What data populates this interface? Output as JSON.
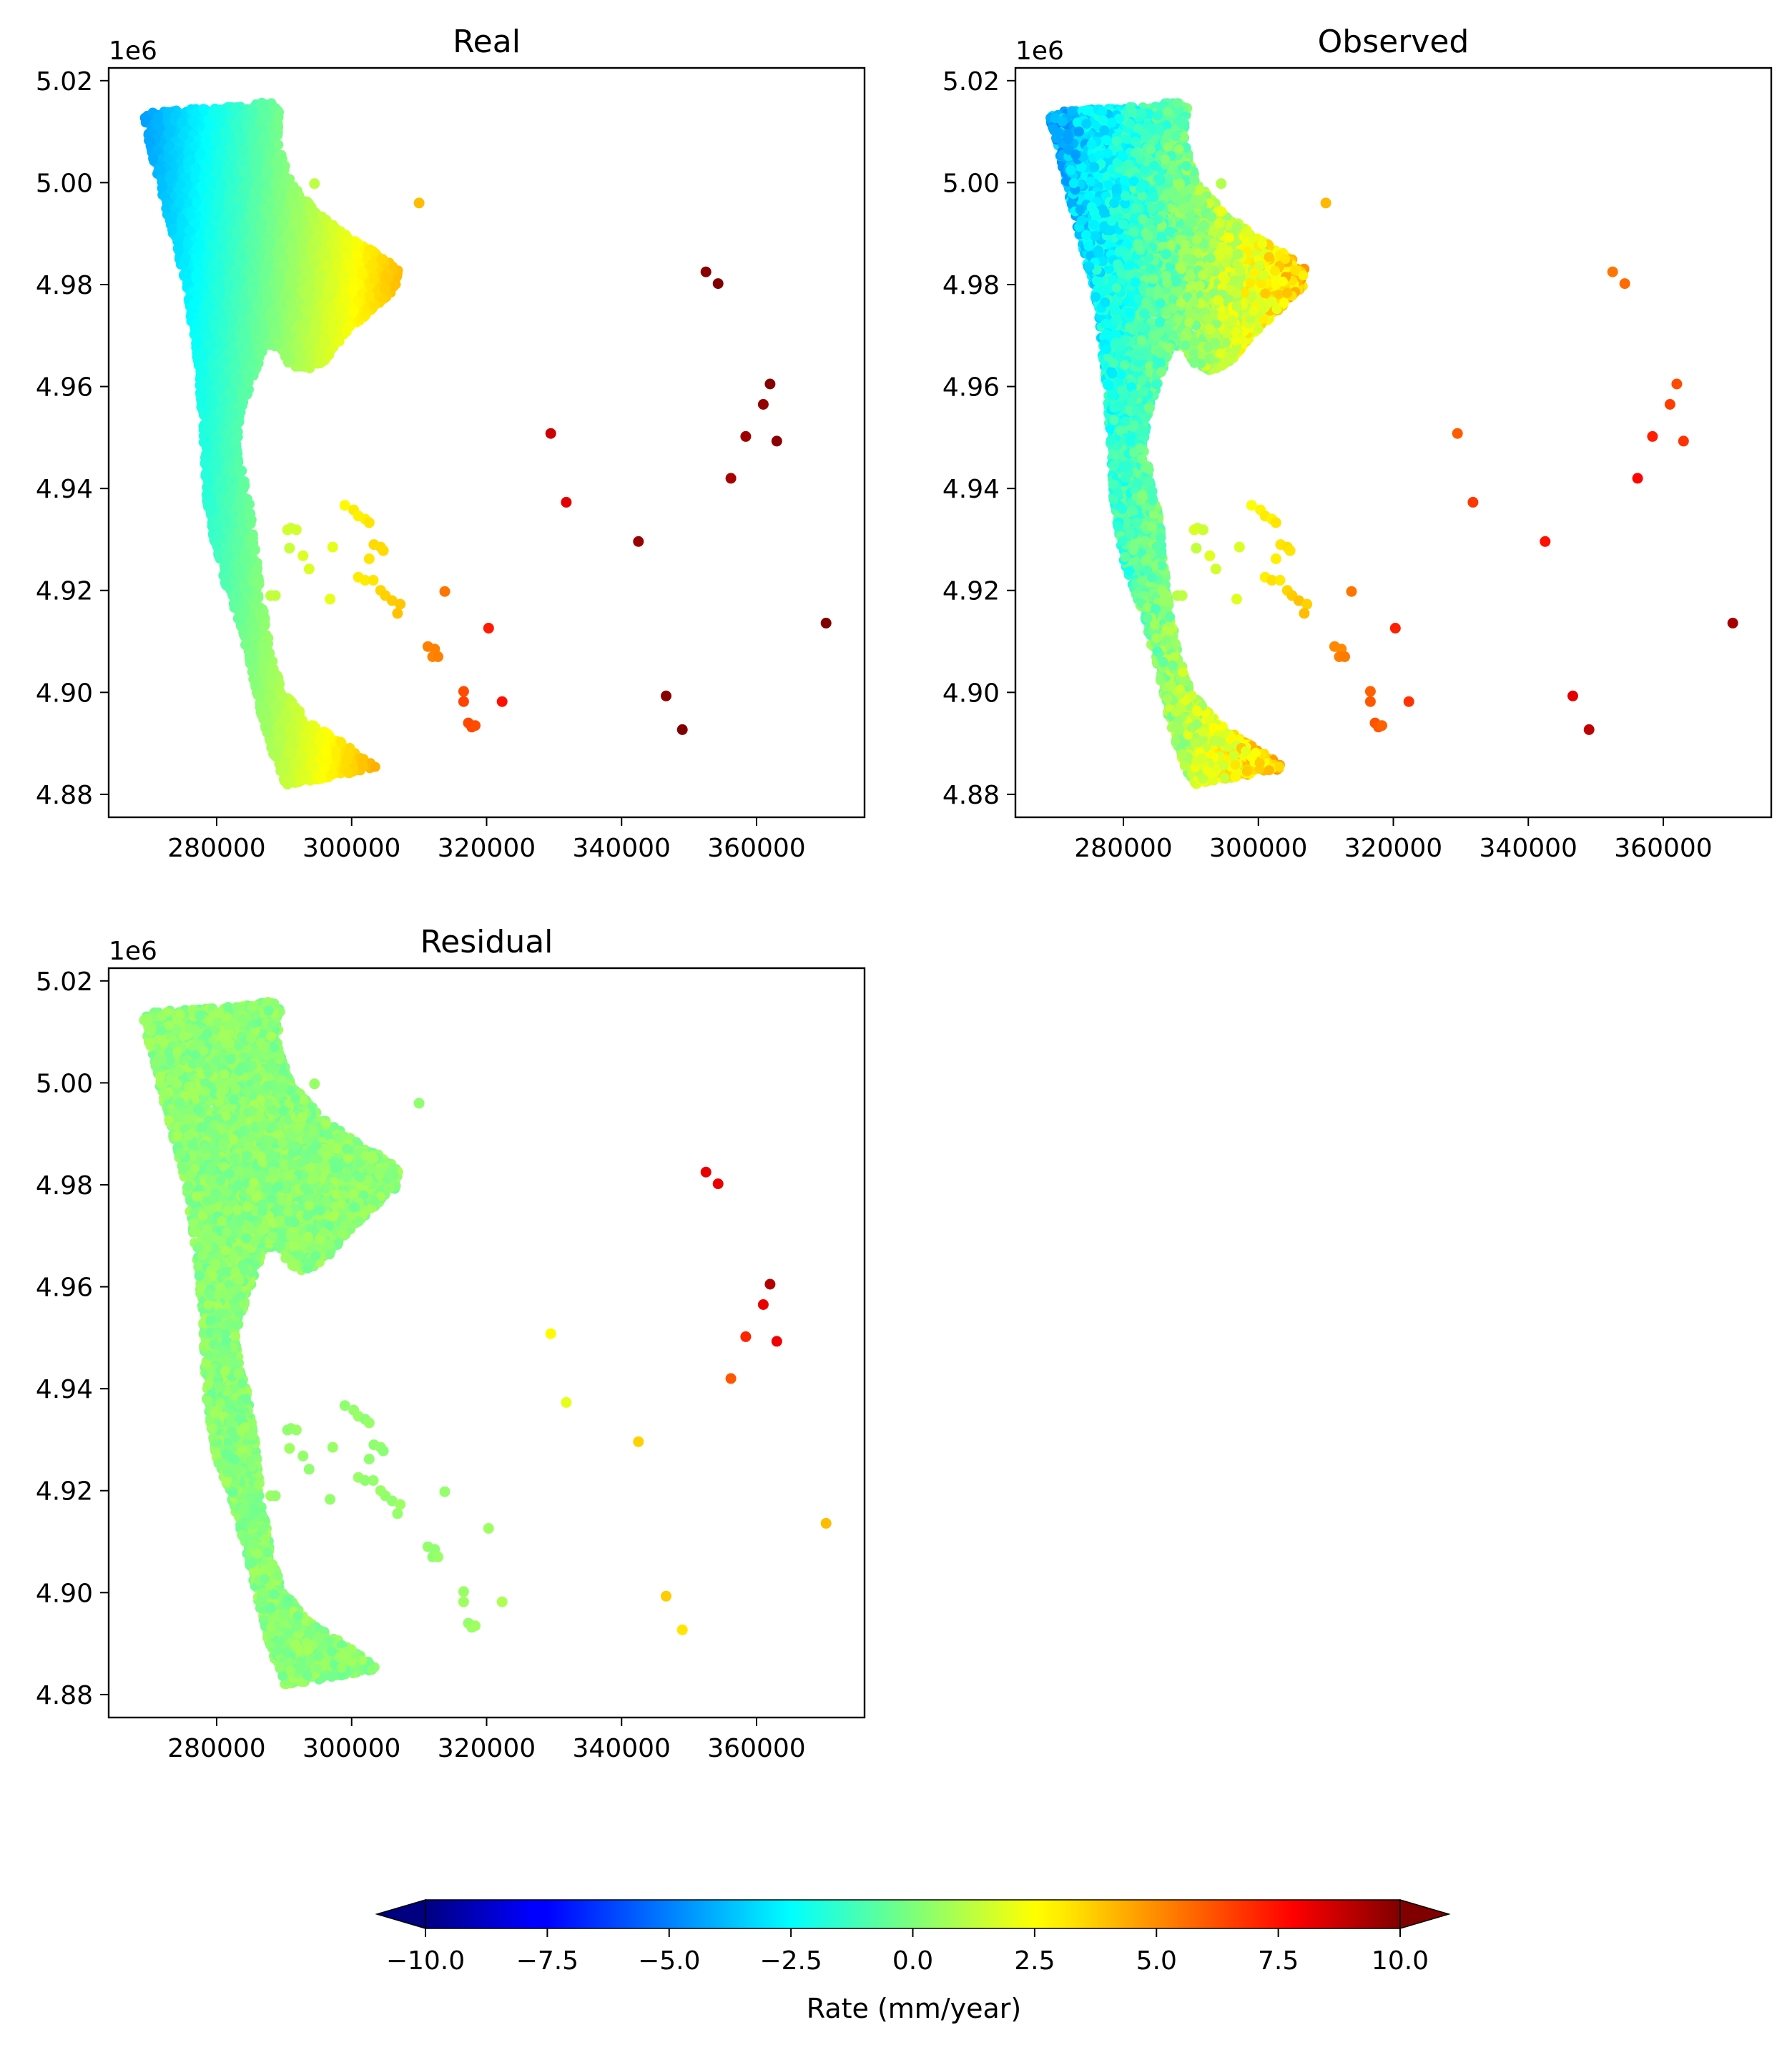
{
  "colorbar": {
    "label": "Rate (mm/year)",
    "min": -10,
    "max": 10,
    "extend": "both",
    "colormap": "jet",
    "ticks": [
      -10,
      -7.5,
      -5,
      -2.5,
      0,
      2.5,
      5,
      7.5,
      10
    ],
    "tick_labels": [
      "−10.0",
      "−7.5",
      "−5.0",
      "−2.5",
      "0.0",
      "2.5",
      "5.0",
      "7.5",
      "10.0"
    ]
  },
  "chart_data": [
    {
      "type": "scatter",
      "title": "Real",
      "xlabel": "",
      "ylabel": "",
      "y_offset_label": "1e6",
      "xlim": [
        264000,
        376000
      ],
      "ylim": [
        4.8755,
        5.0225
      ],
      "xticks": [
        280000,
        300000,
        320000,
        340000,
        360000
      ],
      "xtick_labels": [
        "280000",
        "300000",
        "320000",
        "340000",
        "360000"
      ],
      "yticks": [
        4.88,
        4.9,
        4.92,
        4.94,
        4.96,
        4.98,
        5.0,
        5.02
      ],
      "ytick_labels": [
        "4.88",
        "4.90",
        "4.92",
        "4.94",
        "4.96",
        "4.98",
        "5.00",
        "5.02"
      ],
      "grid": false,
      "field": "real",
      "points": [
        [
          310000,
          4.996,
          3.8
        ],
        [
          352500,
          4.9825,
          9.8
        ],
        [
          354300,
          4.9802,
          10.0
        ],
        [
          362000,
          4.9605,
          9.9
        ],
        [
          361000,
          4.9565,
          9.6
        ],
        [
          358400,
          4.9502,
          9.4
        ],
        [
          363000,
          4.9493,
          9.8
        ],
        [
          356200,
          4.942,
          9.2
        ],
        [
          329500,
          4.9508,
          8.5
        ],
        [
          331800,
          4.9373,
          8.0
        ],
        [
          342500,
          4.9296,
          9.5
        ],
        [
          370300,
          4.9136,
          10.0
        ],
        [
          346600,
          4.8993,
          9.8
        ],
        [
          349000,
          4.8927,
          10.0
        ],
        [
          320300,
          4.9126,
          7.0
        ],
        [
          322300,
          4.8982,
          7.2
        ],
        [
          316600,
          4.9002,
          6.0
        ],
        [
          316600,
          4.8982,
          6.2
        ],
        [
          317300,
          4.894,
          6.1
        ],
        [
          317800,
          4.8932,
          6.1
        ],
        [
          318300,
          4.8935,
          6.0
        ],
        [
          311300,
          4.909,
          5.0
        ],
        [
          312300,
          4.9085,
          5.0
        ],
        [
          312000,
          4.907,
          4.9
        ],
        [
          312800,
          4.907,
          5.0
        ],
        [
          313800,
          4.9198,
          5.2
        ],
        [
          299000,
          4.9367,
          2.6
        ],
        [
          300300,
          4.9358,
          2.9
        ],
        [
          301000,
          4.9346,
          2.8
        ],
        [
          302000,
          4.934,
          2.8
        ],
        [
          302600,
          4.9333,
          3.0
        ],
        [
          303300,
          4.929,
          3.2
        ],
        [
          304300,
          4.9285,
          3.2
        ],
        [
          304700,
          4.9278,
          3.2
        ],
        [
          302600,
          4.9262,
          3.0
        ],
        [
          297200,
          4.9285,
          2.0
        ],
        [
          292800,
          4.9268,
          1.8
        ],
        [
          293700,
          4.9242,
          1.8
        ],
        [
          291000,
          4.9322,
          1.5
        ],
        [
          291800,
          4.9319,
          1.6
        ],
        [
          290500,
          4.9319,
          1.6
        ],
        [
          290800,
          4.9283,
          1.4
        ],
        [
          296800,
          4.9183,
          2.0
        ],
        [
          301000,
          4.9226,
          2.9
        ],
        [
          302000,
          4.922,
          2.9
        ],
        [
          303200,
          4.922,
          3.0
        ],
        [
          304300,
          4.92,
          3.3
        ],
        [
          305000,
          4.919,
          3.4
        ],
        [
          306000,
          4.918,
          3.5
        ],
        [
          307200,
          4.9173,
          3.6
        ],
        [
          306800,
          4.9155,
          3.7
        ],
        [
          288000,
          4.919,
          1.3
        ],
        [
          288700,
          4.919,
          1.3
        ],
        [
          294500,
          4.9998,
          1.2
        ]
      ]
    },
    {
      "type": "scatter",
      "title": "Observed",
      "xlabel": "",
      "ylabel": "",
      "y_offset_label": "1e6",
      "xlim": [
        264000,
        376000
      ],
      "ylim": [
        4.8755,
        5.0225
      ],
      "xticks": [
        280000,
        300000,
        320000,
        340000,
        360000
      ],
      "xtick_labels": [
        "280000",
        "300000",
        "320000",
        "340000",
        "360000"
      ],
      "yticks": [
        4.88,
        4.9,
        4.92,
        4.94,
        4.96,
        4.98,
        5.0,
        5.02
      ],
      "ytick_labels": [
        "4.88",
        "4.90",
        "4.92",
        "4.94",
        "4.96",
        "4.98",
        "5.00",
        "5.02"
      ],
      "grid": false,
      "field": "observed",
      "points": [
        [
          310000,
          4.996,
          3.9
        ],
        [
          352500,
          4.9825,
          5.2
        ],
        [
          354300,
          4.9802,
          5.4
        ],
        [
          362000,
          4.9605,
          6.0
        ],
        [
          361000,
          4.9565,
          6.3
        ],
        [
          358400,
          4.9502,
          6.9
        ],
        [
          363000,
          4.9493,
          6.5
        ],
        [
          356200,
          4.942,
          7.4
        ],
        [
          329500,
          4.9508,
          5.7
        ],
        [
          331800,
          4.9373,
          6.4
        ],
        [
          342500,
          4.9296,
          7.2
        ],
        [
          370300,
          4.9136,
          9.2
        ],
        [
          346600,
          4.8993,
          8.0
        ],
        [
          349000,
          4.8927,
          8.8
        ],
        [
          320300,
          4.9126,
          6.9
        ],
        [
          322300,
          4.8982,
          6.5
        ],
        [
          316600,
          4.9002,
          5.6
        ],
        [
          316600,
          4.8982,
          5.8
        ],
        [
          317300,
          4.894,
          5.9
        ],
        [
          317800,
          4.8932,
          5.8
        ],
        [
          318300,
          4.8935,
          5.6
        ],
        [
          311300,
          4.909,
          4.8
        ],
        [
          312300,
          4.9085,
          4.8
        ],
        [
          312000,
          4.907,
          5.0
        ],
        [
          312800,
          4.907,
          5.1
        ],
        [
          313800,
          4.9198,
          5.2
        ],
        [
          299000,
          4.9367,
          2.4
        ],
        [
          300300,
          4.9358,
          2.7
        ],
        [
          301000,
          4.9346,
          2.9
        ],
        [
          302000,
          4.934,
          2.7
        ],
        [
          302600,
          4.9333,
          3.0
        ],
        [
          303300,
          4.929,
          3.0
        ],
        [
          304300,
          4.9285,
          3.1
        ],
        [
          304700,
          4.9278,
          3.0
        ],
        [
          302600,
          4.9262,
          2.8
        ],
        [
          297200,
          4.9285,
          1.8
        ],
        [
          292800,
          4.9268,
          1.9
        ],
        [
          293700,
          4.9242,
          1.6
        ],
        [
          291000,
          4.9322,
          1.4
        ],
        [
          291800,
          4.9319,
          1.5
        ],
        [
          290500,
          4.9319,
          1.8
        ],
        [
          290800,
          4.9283,
          1.3
        ],
        [
          296800,
          4.9183,
          1.9
        ],
        [
          301000,
          4.9226,
          2.8
        ],
        [
          302000,
          4.922,
          3.1
        ],
        [
          303200,
          4.922,
          2.9
        ],
        [
          304300,
          4.92,
          3.3
        ],
        [
          305000,
          4.919,
          3.5
        ],
        [
          306000,
          4.918,
          3.7
        ],
        [
          307200,
          4.9173,
          3.4
        ],
        [
          306800,
          4.9155,
          3.8
        ],
        [
          288000,
          4.919,
          1.1
        ],
        [
          288700,
          4.919,
          1.2
        ],
        [
          294500,
          4.9998,
          1.0
        ]
      ]
    },
    {
      "type": "scatter",
      "title": "Residual",
      "xlabel": "",
      "ylabel": "",
      "y_offset_label": "1e6",
      "xlim": [
        264000,
        376000
      ],
      "ylim": [
        4.8755,
        5.0225
      ],
      "xticks": [
        280000,
        300000,
        320000,
        340000,
        360000
      ],
      "xtick_labels": [
        "280000",
        "300000",
        "320000",
        "340000",
        "360000"
      ],
      "yticks": [
        4.88,
        4.9,
        4.92,
        4.94,
        4.96,
        4.98,
        5.0,
        5.02
      ],
      "ytick_labels": [
        "4.88",
        "4.90",
        "4.92",
        "4.94",
        "4.96",
        "4.98",
        "5.00",
        "5.02"
      ],
      "grid": false,
      "field": "residual",
      "points": [
        [
          310000,
          4.996,
          0.3
        ],
        [
          352500,
          4.9825,
          7.9
        ],
        [
          354300,
          4.9802,
          7.9
        ],
        [
          362000,
          4.9605,
          9.0
        ],
        [
          361000,
          4.9565,
          7.9
        ],
        [
          358400,
          4.9502,
          6.8
        ],
        [
          363000,
          4.9493,
          7.8
        ],
        [
          356200,
          4.942,
          5.8
        ],
        [
          329500,
          4.9508,
          2.6
        ],
        [
          331800,
          4.9373,
          2.0
        ],
        [
          342500,
          4.9296,
          3.4
        ],
        [
          370300,
          4.9136,
          3.8
        ],
        [
          346600,
          4.8993,
          3.5
        ],
        [
          349000,
          4.8927,
          3.0
        ],
        [
          320300,
          4.9126,
          0.6
        ],
        [
          322300,
          4.8982,
          0.9
        ],
        [
          316600,
          4.9002,
          0.5
        ],
        [
          316600,
          4.8982,
          0.6
        ],
        [
          317300,
          4.894,
          0.4
        ],
        [
          317800,
          4.8932,
          0.5
        ],
        [
          318300,
          4.8935,
          0.6
        ],
        [
          311300,
          4.909,
          0.4
        ],
        [
          312300,
          4.9085,
          0.3
        ],
        [
          312000,
          4.907,
          0.3
        ],
        [
          312800,
          4.907,
          0.5
        ],
        [
          313800,
          4.9198,
          0.4
        ],
        [
          299000,
          4.9367,
          0.3
        ],
        [
          300300,
          4.9358,
          0.4
        ],
        [
          301000,
          4.9346,
          0.5
        ],
        [
          302000,
          4.934,
          0.2
        ],
        [
          302600,
          4.9333,
          0.5
        ],
        [
          303300,
          4.929,
          0.3
        ],
        [
          304300,
          4.9285,
          0.4
        ],
        [
          304700,
          4.9278,
          0.2
        ],
        [
          302600,
          4.9262,
          0.3
        ],
        [
          297200,
          4.9285,
          0.5
        ],
        [
          292800,
          4.9268,
          0.4
        ],
        [
          293700,
          4.9242,
          0.3
        ],
        [
          291000,
          4.9322,
          0.4
        ],
        [
          291800,
          4.9319,
          0.5
        ],
        [
          290500,
          4.9319,
          0.3
        ],
        [
          290800,
          4.9283,
          0.6
        ],
        [
          296800,
          4.9183,
          0.4
        ],
        [
          301000,
          4.9226,
          0.5
        ],
        [
          302000,
          4.922,
          0.3
        ],
        [
          303200,
          4.922,
          0.4
        ],
        [
          304300,
          4.92,
          0.5
        ],
        [
          305000,
          4.919,
          0.4
        ],
        [
          306000,
          4.918,
          0.3
        ],
        [
          307200,
          4.9173,
          0.6
        ],
        [
          306800,
          4.9155,
          0.4
        ],
        [
          288000,
          4.919,
          0.6
        ],
        [
          288700,
          4.919,
          0.4
        ],
        [
          294500,
          4.9998,
          0.5
        ]
      ]
    }
  ]
}
